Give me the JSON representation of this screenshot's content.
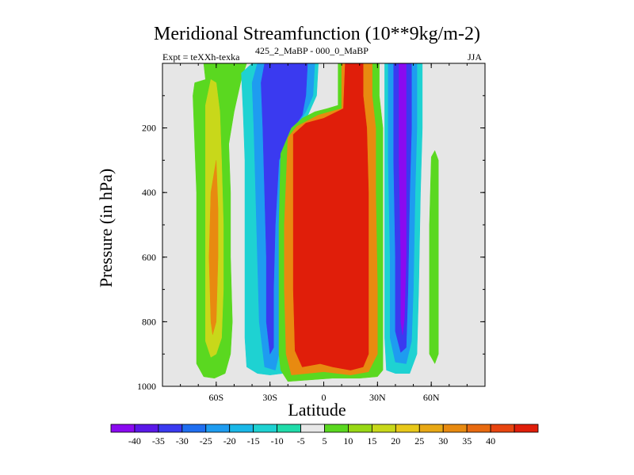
{
  "chart_data": {
    "type": "heatmap",
    "title": "Meridional Streamfunction (10**9kg/m-2)",
    "left_label": "Expt = teXXh-texka",
    "center_label": "425_2_MaBP - 000_0_MaBP",
    "right_label": "JJA",
    "xlabel": "Latitude",
    "ylabel": "Pressure (in hPa)",
    "xlim": [
      -90,
      90
    ],
    "ylim": [
      0,
      1000
    ],
    "y_inverted": true,
    "x_ticks": [
      {
        "value": -60,
        "label": "60S"
      },
      {
        "value": -30,
        "label": "30S"
      },
      {
        "value": 0,
        "label": "0"
      },
      {
        "value": 30,
        "label": "30N"
      },
      {
        "value": 60,
        "label": "60N"
      }
    ],
    "y_ticks": [
      {
        "value": 200,
        "label": "200"
      },
      {
        "value": 400,
        "label": "400"
      },
      {
        "value": 600,
        "label": "600"
      },
      {
        "value": 800,
        "label": "800"
      },
      {
        "value": 1000,
        "label": "1000"
      }
    ],
    "background_color": "#e6e6e6",
    "colorbar": {
      "colors": [
        "#8a0af0",
        "#5a18e8",
        "#3a3af0",
        "#1f6ef0",
        "#1e9cf0",
        "#1ab8e8",
        "#1ed2d2",
        "#20dcaa",
        "#e8e8e8",
        "#5ad820",
        "#98d815",
        "#c8d81a",
        "#e8c81a",
        "#e8a815",
        "#e88a10",
        "#e86a10",
        "#e84510",
        "#e01e0a"
      ],
      "labels": [
        "-40",
        "-35",
        "-30",
        "-25",
        "-20",
        "-15",
        "-10",
        "-5",
        "5",
        "10",
        "15",
        "20",
        "25",
        "30",
        "35",
        "40"
      ]
    },
    "regions": [
      {
        "name": "sh-subpolar-green",
        "value": 5,
        "color": "#5ad820",
        "points": [
          [
            -73,
            100
          ],
          [
            -72,
            250
          ],
          [
            -71,
            400
          ],
          [
            -71,
            600
          ],
          [
            -71,
            800
          ],
          [
            -71,
            930
          ],
          [
            -67,
            970
          ],
          [
            -61,
            975
          ],
          [
            -55,
            960
          ],
          [
            -52,
            900
          ],
          [
            -51,
            800
          ],
          [
            -52,
            600
          ],
          [
            -52,
            400
          ],
          [
            -53,
            250
          ],
          [
            -50,
            150
          ],
          [
            -46,
            50
          ],
          [
            -43,
            0
          ],
          [
            -67,
            0
          ],
          [
            -66,
            50
          ],
          [
            -72,
            60
          ]
        ]
      },
      {
        "name": "sh-subpolar-yellow",
        "value": 15,
        "color": "#c8d81a",
        "points": [
          [
            -66,
            130
          ],
          [
            -66,
            300
          ],
          [
            -66,
            500
          ],
          [
            -66,
            700
          ],
          [
            -66,
            860
          ],
          [
            -63,
            910
          ],
          [
            -60,
            900
          ],
          [
            -57,
            850
          ],
          [
            -56,
            700
          ],
          [
            -56,
            500
          ],
          [
            -57,
            300
          ],
          [
            -58,
            150
          ],
          [
            -60,
            60
          ],
          [
            -63,
            50
          ]
        ]
      },
      {
        "name": "sh-subpolar-orange",
        "value": 30,
        "color": "#e88a10",
        "points": [
          [
            -63,
            400
          ],
          [
            -64,
            600
          ],
          [
            -63,
            800
          ],
          [
            -62,
            840
          ],
          [
            -60,
            800
          ],
          [
            -59,
            600
          ],
          [
            -59,
            450
          ],
          [
            -60,
            300
          ]
        ]
      },
      {
        "name": "sh-ferrel-cyan",
        "value": -10,
        "color": "#1ed2d2",
        "points": [
          [
            -46,
            30
          ],
          [
            -45,
            150
          ],
          [
            -44,
            300
          ],
          [
            -44,
            500
          ],
          [
            -44,
            700
          ],
          [
            -44,
            850
          ],
          [
            -43,
            940
          ],
          [
            -37,
            960
          ],
          [
            -30,
            965
          ],
          [
            -23,
            960
          ],
          [
            -22,
            900
          ],
          [
            -22,
            700
          ],
          [
            -20,
            500
          ],
          [
            -18,
            300
          ],
          [
            -12,
            200
          ],
          [
            -8,
            150
          ],
          [
            -4,
            100
          ],
          [
            -3,
            0
          ],
          [
            -40,
            0
          ]
        ]
      },
      {
        "name": "sh-ferrel-blue",
        "value": -20,
        "color": "#1e9cf0",
        "points": [
          [
            -40,
            60
          ],
          [
            -39,
            200
          ],
          [
            -38,
            400
          ],
          [
            -37,
            600
          ],
          [
            -36,
            800
          ],
          [
            -33,
            940
          ],
          [
            -27,
            950
          ],
          [
            -25,
            900
          ],
          [
            -25,
            700
          ],
          [
            -24,
            500
          ],
          [
            -23,
            300
          ],
          [
            -16,
            200
          ],
          [
            -10,
            150
          ],
          [
            -6,
            100
          ],
          [
            -5,
            0
          ],
          [
            -37,
            0
          ]
        ]
      },
      {
        "name": "sh-ferrel-navy",
        "value": -30,
        "color": "#3a3af0",
        "points": [
          [
            -35,
            60
          ],
          [
            -34,
            200
          ],
          [
            -33,
            400
          ],
          [
            -32,
            600
          ],
          [
            -32,
            800
          ],
          [
            -30,
            900
          ],
          [
            -28,
            880
          ],
          [
            -28,
            700
          ],
          [
            -27,
            500
          ],
          [
            -25,
            300
          ],
          [
            -18,
            210
          ],
          [
            -12,
            160
          ],
          [
            -10,
            100
          ],
          [
            -9,
            0
          ],
          [
            -33,
            0
          ]
        ]
      },
      {
        "name": "hadley-green",
        "value": 5,
        "color": "#5ad820",
        "points": [
          [
            -24,
            280
          ],
          [
            -25,
            500
          ],
          [
            -25,
            700
          ],
          [
            -25,
            900
          ],
          [
            -24,
            950
          ],
          [
            -20,
            985
          ],
          [
            5,
            975
          ],
          [
            20,
            975
          ],
          [
            30,
            970
          ],
          [
            33,
            950
          ],
          [
            33,
            700
          ],
          [
            33,
            400
          ],
          [
            33,
            200
          ],
          [
            31,
            100
          ],
          [
            31,
            0
          ],
          [
            8,
            0
          ],
          [
            8,
            130
          ],
          [
            2,
            140
          ],
          [
            -5,
            150
          ],
          [
            -12,
            170
          ],
          [
            -18,
            200
          ]
        ]
      },
      {
        "name": "hadley-orange",
        "value": 30,
        "color": "#e88a10",
        "points": [
          [
            -20,
            230
          ],
          [
            -22,
            500
          ],
          [
            -22,
            700
          ],
          [
            -21,
            900
          ],
          [
            -18,
            965
          ],
          [
            0,
            955
          ],
          [
            15,
            965
          ],
          [
            25,
            955
          ],
          [
            30,
            900
          ],
          [
            30,
            700
          ],
          [
            29,
            400
          ],
          [
            29,
            200
          ],
          [
            27,
            100
          ],
          [
            27,
            0
          ],
          [
            10,
            0
          ],
          [
            10,
            140
          ],
          [
            -3,
            160
          ],
          [
            -15,
            195
          ]
        ]
      },
      {
        "name": "hadley-red",
        "value": 40,
        "color": "#e01e0a",
        "points": [
          [
            -17,
            220
          ],
          [
            -17,
            400
          ],
          [
            -17,
            700
          ],
          [
            -16,
            890
          ],
          [
            -12,
            940
          ],
          [
            -2,
            930
          ],
          [
            5,
            940
          ],
          [
            15,
            950
          ],
          [
            22,
            940
          ],
          [
            25,
            900
          ],
          [
            25,
            700
          ],
          [
            25,
            400
          ],
          [
            24,
            200
          ],
          [
            22,
            100
          ],
          [
            22,
            0
          ],
          [
            12,
            0
          ],
          [
            11,
            140
          ],
          [
            0,
            170
          ],
          [
            -10,
            185
          ]
        ]
      },
      {
        "name": "nh-ferrel-cyan",
        "value": -10,
        "color": "#1ed2d2",
        "points": [
          [
            34,
            0
          ],
          [
            34,
            300
          ],
          [
            34,
            600
          ],
          [
            34,
            850
          ],
          [
            35,
            950
          ],
          [
            40,
            960
          ],
          [
            48,
            960
          ],
          [
            52,
            900
          ],
          [
            53,
            700
          ],
          [
            54,
            400
          ],
          [
            55,
            200
          ],
          [
            55,
            0
          ]
        ]
      },
      {
        "name": "nh-ferrel-blue",
        "value": -20,
        "color": "#1e9cf0",
        "points": [
          [
            36,
            0
          ],
          [
            36,
            300
          ],
          [
            37,
            600
          ],
          [
            37,
            850
          ],
          [
            40,
            925
          ],
          [
            46,
            930
          ],
          [
            49,
            860
          ],
          [
            50,
            700
          ],
          [
            51,
            400
          ],
          [
            52,
            200
          ],
          [
            52,
            0
          ]
        ]
      },
      {
        "name": "nh-ferrel-navy",
        "value": -30,
        "color": "#3a3af0",
        "points": [
          [
            39,
            0
          ],
          [
            39,
            300
          ],
          [
            40,
            600
          ],
          [
            40,
            830
          ],
          [
            43,
            895
          ],
          [
            46,
            880
          ],
          [
            47,
            700
          ],
          [
            48,
            400
          ],
          [
            49,
            200
          ],
          [
            49,
            0
          ]
        ]
      },
      {
        "name": "nh-ferrel-purple",
        "value": -40,
        "color": "#8a0af0",
        "points": [
          [
            42,
            0
          ],
          [
            42,
            300
          ],
          [
            43,
            600
          ],
          [
            43,
            800
          ],
          [
            44,
            840
          ],
          [
            45,
            790
          ],
          [
            46,
            600
          ],
          [
            46,
            300
          ],
          [
            46,
            0
          ]
        ]
      },
      {
        "name": "nh-polar-green",
        "value": 5,
        "color": "#5ad820",
        "points": [
          [
            60,
            290
          ],
          [
            59,
            500
          ],
          [
            59,
            700
          ],
          [
            59,
            900
          ],
          [
            62,
            930
          ],
          [
            64,
            900
          ],
          [
            64,
            700
          ],
          [
            64,
            500
          ],
          [
            64,
            300
          ],
          [
            62,
            270
          ]
        ]
      }
    ]
  }
}
